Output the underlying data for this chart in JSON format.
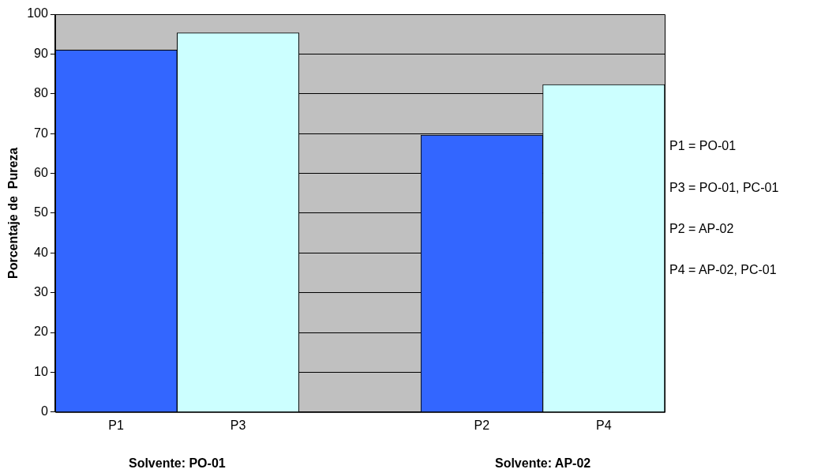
{
  "chart_data": {
    "type": "bar",
    "categories": [
      "P1",
      "P3",
      null,
      "P2",
      "P4"
    ],
    "values": [
      91.0,
      95.3,
      null,
      69.6,
      82.3
    ],
    "colors": [
      "#3366ff",
      "#ccffff",
      null,
      "#3366ff",
      "#ccffff"
    ],
    "ylabel": "Porcentaje de  Pureza",
    "ylim": [
      0,
      100
    ],
    "yticks": [
      0,
      10,
      20,
      30,
      40,
      50,
      60,
      70,
      80,
      90,
      100
    ],
    "grid": "y",
    "legend": false,
    "annotations": [
      "Solvente: PO-01",
      "Solvente: AP-02",
      "P1 = PO-01",
      "P3 = PO-01, PC-01",
      "P2 = AP-02",
      "P4 = AP-02, PC-01"
    ]
  }
}
